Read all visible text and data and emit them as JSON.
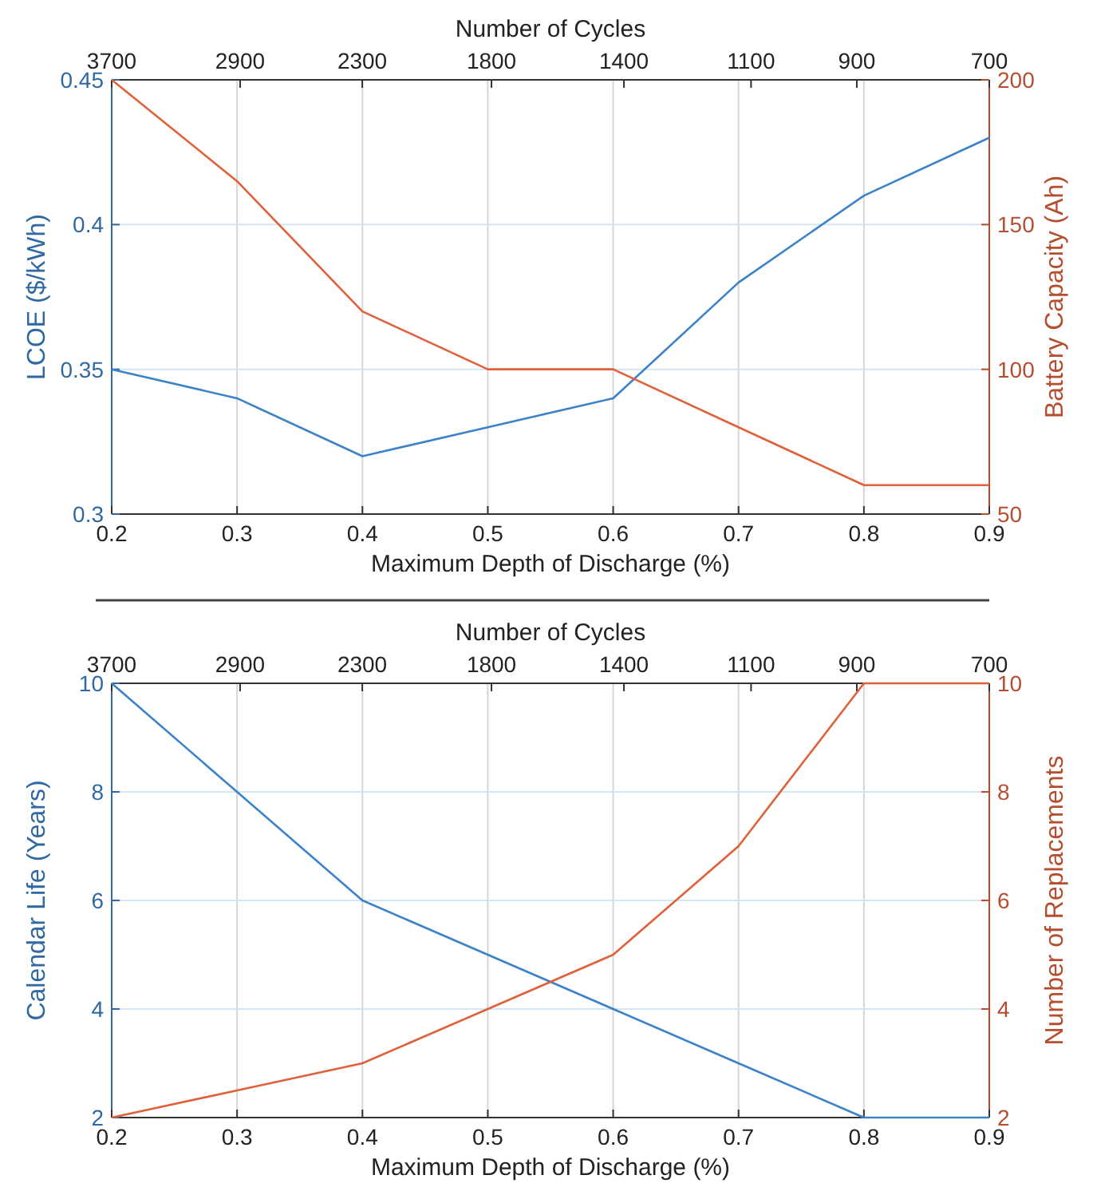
{
  "chart_data": [
    {
      "type": "line",
      "xlabel": "Maximum Depth of Discharge (%)",
      "ylabel": "LCOE ($/kWh)",
      "y2label": "Battery Capacity (Ah)",
      "x2label": "Number of Cycles",
      "x": [
        0.2,
        0.3,
        0.4,
        0.5,
        0.6,
        0.7,
        0.8,
        0.9
      ],
      "series": [
        {
          "color": "#3b82c9",
          "values": [
            0.35,
            0.34,
            0.32,
            0.33,
            0.34,
            0.38,
            0.41,
            0.43
          ]
        },
        {
          "color": "#e0603a",
          "axis": "y2",
          "values": [
            200,
            165,
            120,
            100,
            100,
            80,
            60,
            60
          ]
        }
      ],
      "xlim": [
        0.2,
        0.9
      ],
      "xticks": [
        0.2,
        0.3,
        0.4,
        0.5,
        0.6,
        0.7,
        0.8,
        0.9
      ],
      "x2lim": [
        3700,
        700
      ],
      "x2ticks": [
        3700,
        2900,
        2300,
        1800,
        1400,
        1100,
        900,
        700
      ],
      "log": "x2",
      "ylim": [
        0.3,
        0.45
      ],
      "yticks": [
        0.3,
        0.35,
        0.4,
        0.45
      ],
      "y2lim": [
        50,
        200
      ],
      "y2ticks": [
        50,
        100,
        150,
        200
      ],
      "grid": true
    },
    {
      "type": "line",
      "xlabel": "Maximum Depth of Discharge (%)",
      "ylabel": "Calendar Life (Years)",
      "y2label": "Number of Replacements",
      "x2label": "Number of Cycles",
      "x": [
        0.2,
        0.3,
        0.4,
        0.5,
        0.6,
        0.7,
        0.8,
        0.9
      ],
      "series": [
        {
          "color": "#3b82c9",
          "values": [
            10,
            8,
            6,
            5,
            4,
            3,
            2,
            2
          ]
        },
        {
          "color": "#e0603a",
          "axis": "y2",
          "values": [
            2,
            2.5,
            3,
            4,
            5,
            7,
            10,
            10
          ]
        }
      ],
      "xlim": [
        0.2,
        0.9
      ],
      "xticks": [
        0.2,
        0.3,
        0.4,
        0.5,
        0.6,
        0.7,
        0.8,
        0.9
      ],
      "x2lim": [
        3700,
        700
      ],
      "x2ticks": [
        3700,
        2900,
        2300,
        1800,
        1400,
        1100,
        900,
        700
      ],
      "log": "x2",
      "ylim": [
        2,
        10
      ],
      "yticks": [
        2,
        4,
        6,
        8,
        10
      ],
      "y2lim": [
        2,
        10
      ],
      "y2ticks": [
        2,
        4,
        6,
        8,
        10
      ],
      "grid": true
    }
  ]
}
